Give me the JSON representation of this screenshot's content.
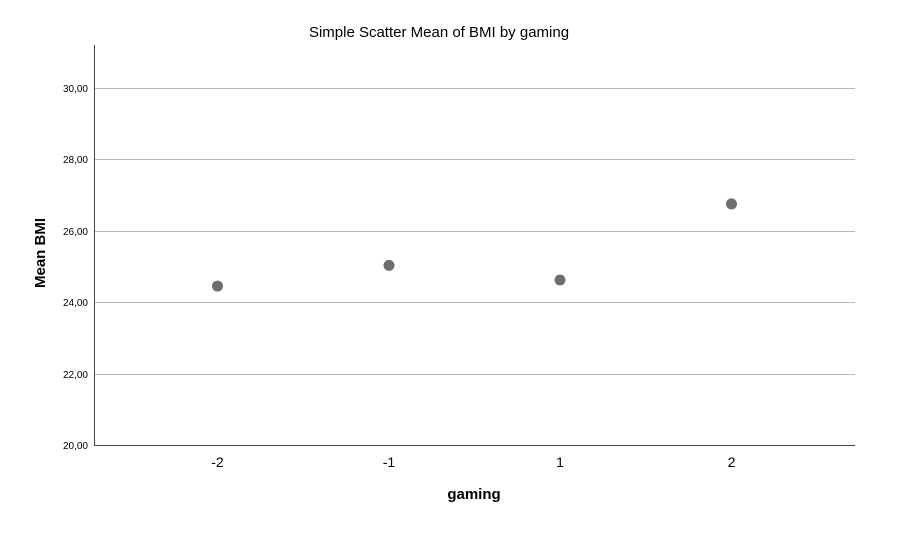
{
  "chart_data": {
    "type": "scatter",
    "title": "Simple Scatter Mean of BMI by gaming",
    "xlabel": "gaming",
    "ylabel": "Mean BMI",
    "categories": [
      "-2",
      "-1",
      "1",
      "2"
    ],
    "values": [
      24.45,
      25.03,
      24.62,
      26.75
    ],
    "ylim": [
      20,
      31.2
    ],
    "yticks": [
      "20,00",
      "22,00",
      "24,00",
      "26,00",
      "28,00",
      "30,00"
    ],
    "ytick_values": [
      20,
      22,
      24,
      26,
      28,
      30
    ],
    "grid": true,
    "legend": "none",
    "colors": {
      "point": "#6e6e6e",
      "grid": "#b9b9b9",
      "axis": "#444444"
    }
  }
}
